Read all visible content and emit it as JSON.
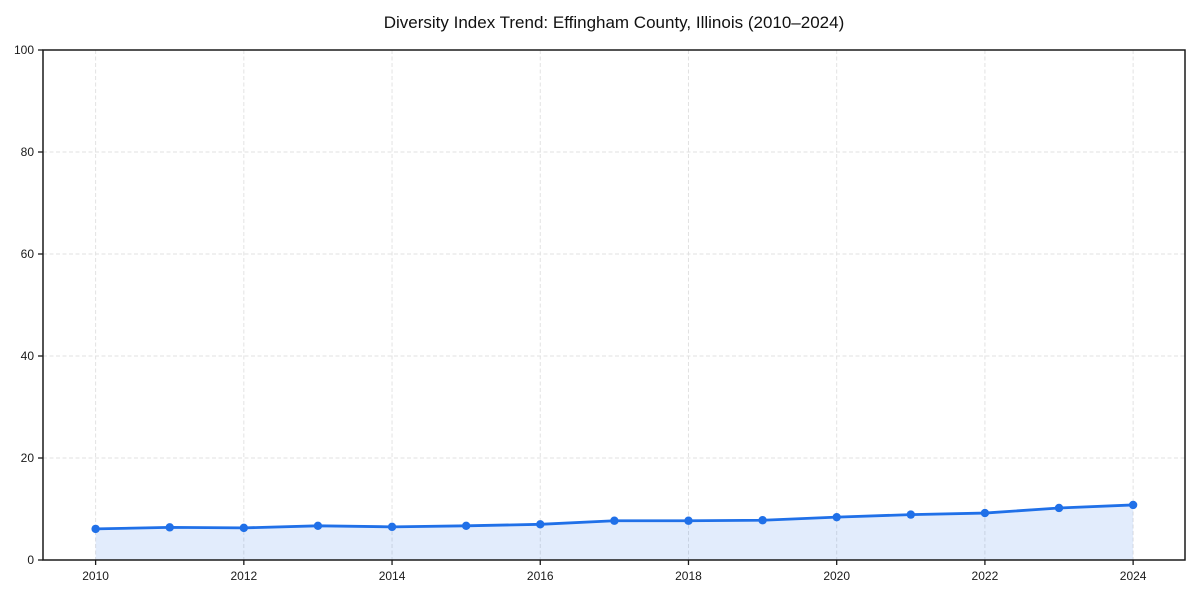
{
  "chart_data": {
    "type": "line",
    "title": "Diversity Index Trend: Effingham County, Illinois (2010–2024)",
    "x": [
      2010,
      2011,
      2012,
      2013,
      2014,
      2015,
      2016,
      2017,
      2018,
      2019,
      2020,
      2021,
      2022,
      2023,
      2024
    ],
    "series": [
      {
        "name": "Diversity Index",
        "values": [
          6.1,
          6.4,
          6.3,
          6.7,
          6.5,
          6.7,
          7.0,
          7.7,
          7.7,
          7.8,
          8.4,
          8.9,
          9.2,
          10.2,
          10.8
        ]
      }
    ],
    "xlabel": "",
    "ylabel": "",
    "xlim": [
      2009.29,
      2024.7
    ],
    "ylim": [
      0,
      100
    ],
    "xticks": [
      2010,
      2012,
      2014,
      2016,
      2018,
      2020,
      2022,
      2024
    ],
    "yticks": [
      0,
      20,
      40,
      60,
      80,
      100
    ],
    "grid": "dashed-both-axes",
    "legend": "none",
    "area_fill": true,
    "marker": "circle",
    "colors": {
      "line": "#2070e8",
      "marker": "#2070e8",
      "fill": "rgba(32,112,232,0.13)",
      "grid": "#e2e2e2",
      "axis": "#1a1a1a",
      "tick_label": "#1a1a1a",
      "title": "#111111",
      "background": "#ffffff"
    }
  }
}
